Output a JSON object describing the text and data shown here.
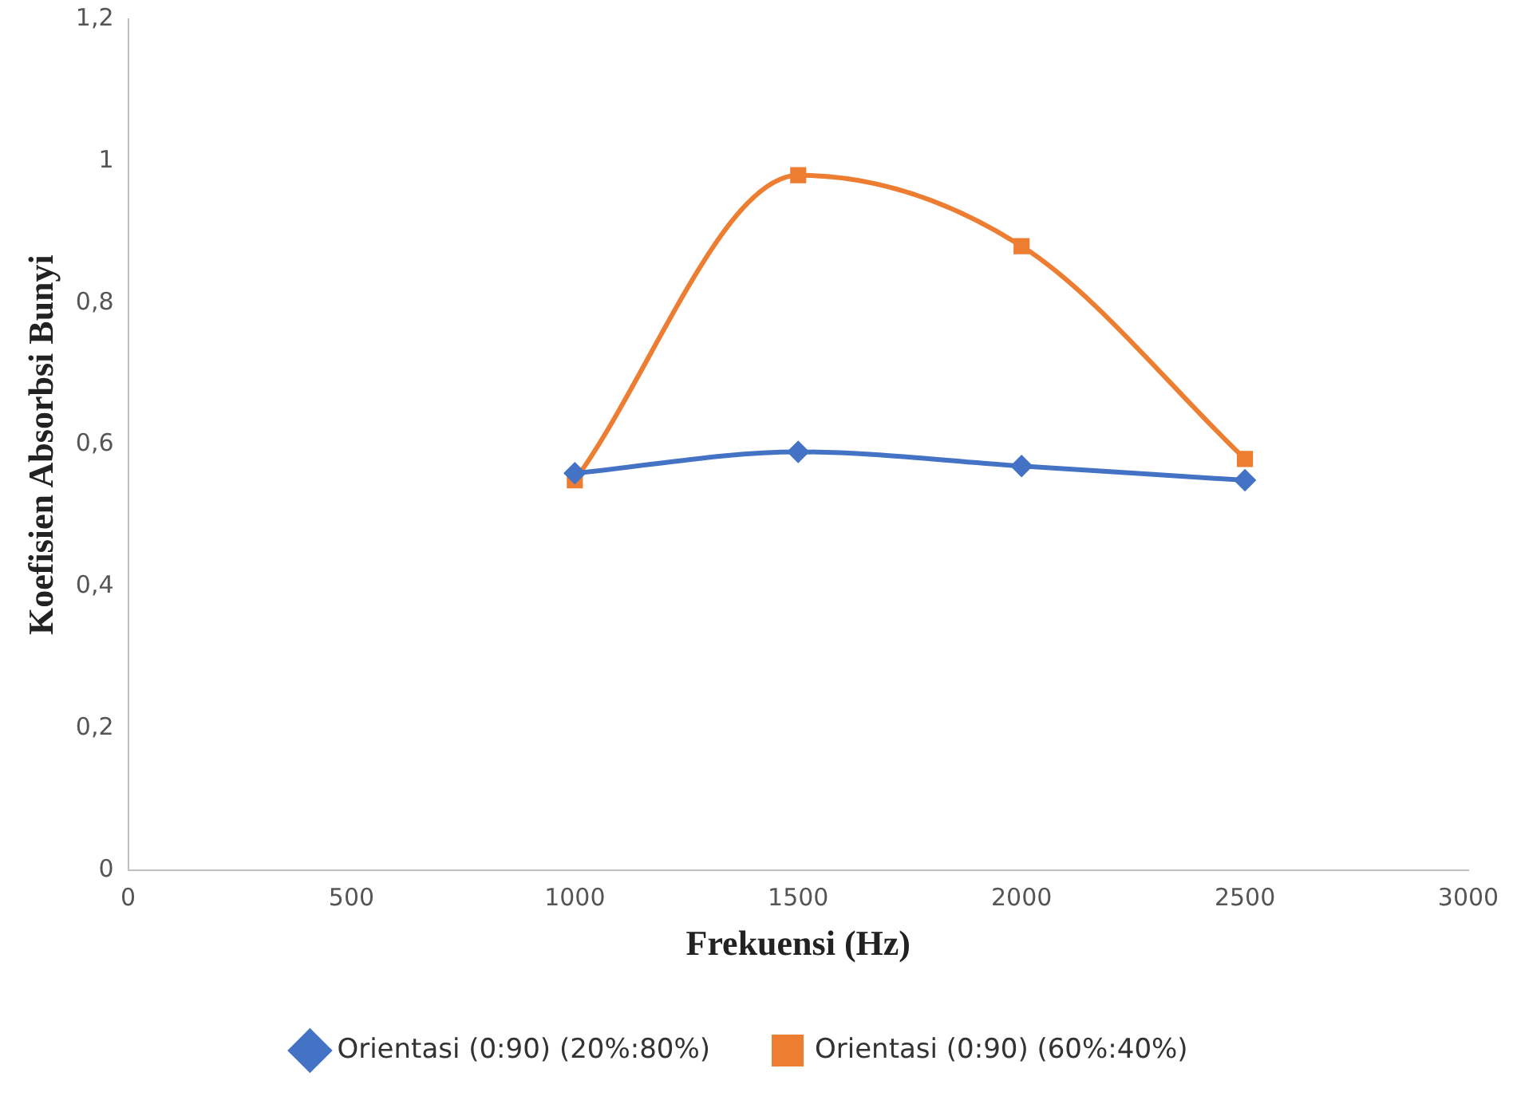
{
  "chart_data": {
    "type": "line",
    "xlabel": "Frekuensi (Hz)",
    "ylabel": "Koefisien Absorbsi Bunyi",
    "x": [
      1000,
      1500,
      2000,
      2500
    ],
    "series": [
      {
        "name": "Orientasi (0:90) (20%:80%)",
        "color": "#4472c4",
        "values": [
          0.56,
          0.59,
          0.57,
          0.55
        ],
        "marker": "diamond"
      },
      {
        "name": "Orientasi (0:90) (60%:40%)",
        "color": "#ed7d31",
        "values": [
          0.55,
          0.98,
          0.88,
          0.58
        ],
        "marker": "square"
      }
    ],
    "xlim": [
      0,
      3000
    ],
    "xticks": [
      0,
      500,
      1000,
      1500,
      2000,
      2500,
      3000
    ],
    "ylim": [
      0,
      1.2
    ],
    "yticks": [
      0,
      {
        "value": 0.2,
        "label": "0,2"
      },
      {
        "value": 0.4,
        "label": "0,4"
      },
      {
        "value": 0.6,
        "label": "0,6"
      },
      {
        "value": 0.8,
        "label": "0,8"
      },
      1,
      {
        "value": 1.2,
        "label": "1,2"
      }
    ],
    "grid": false,
    "legend": "bottom",
    "line_style": "solid"
  }
}
